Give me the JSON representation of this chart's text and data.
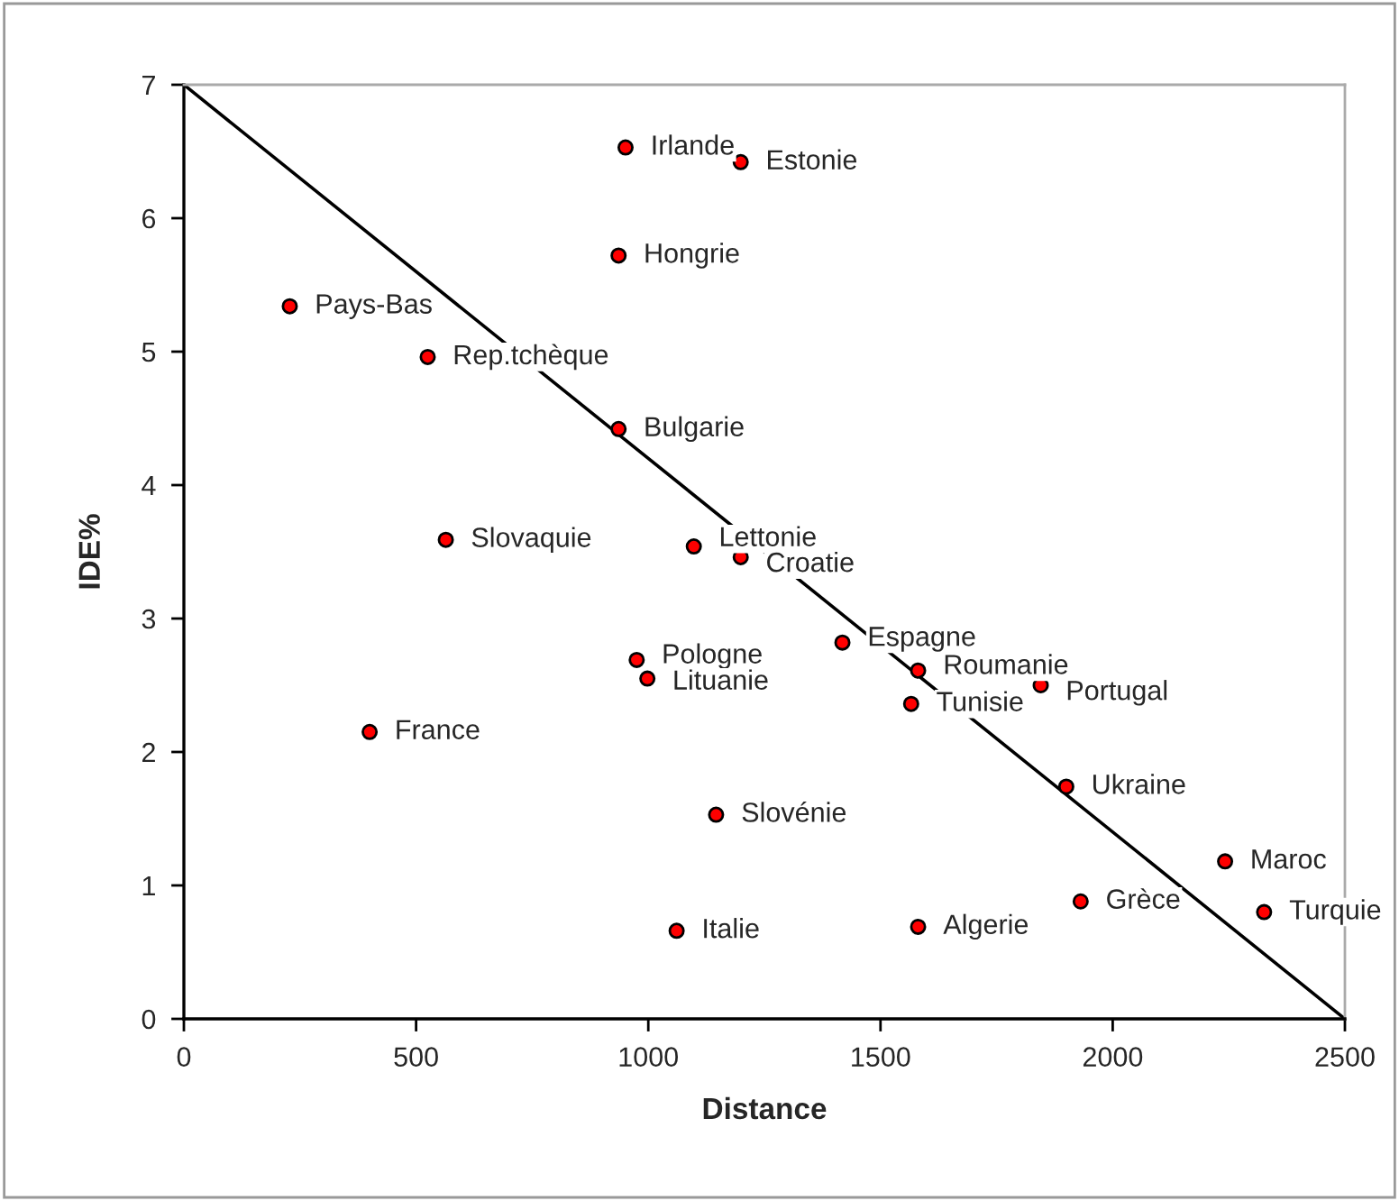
{
  "chart_data": {
    "type": "scatter",
    "xlabel": "Distance",
    "ylabel": "IDE%",
    "xlim": [
      0,
      2500
    ],
    "ylim": [
      0,
      7
    ],
    "xticks": [
      0,
      500,
      1000,
      1500,
      2000,
      2500
    ],
    "yticks": [
      0,
      1,
      2,
      3,
      4,
      5,
      6,
      7
    ],
    "grid": false,
    "legend": false,
    "marker": "circle",
    "series": [
      {
        "color": "#ff0000",
        "x": [
          951,
          1199,
          936,
          228,
          525,
          936,
          564,
          1098,
          1199,
          975,
          998,
          400,
          1146,
          1061,
          1418,
          1581,
          1845,
          1566,
          1900,
          2242,
          1931,
          2326,
          1581
        ],
        "values": [
          6.53,
          6.42,
          5.72,
          5.34,
          4.96,
          4.42,
          3.59,
          3.54,
          3.46,
          2.69,
          2.55,
          2.15,
          1.53,
          0.66,
          2.82,
          2.61,
          2.5,
          2.36,
          1.74,
          1.18,
          0.88,
          0.8,
          0.69
        ]
      },
      {
        "type": "line",
        "color": "#000000",
        "x": [
          0,
          2500
        ],
        "values": [
          7,
          0
        ],
        "line_style": "solid",
        "marker": "none"
      }
    ],
    "annotations": [
      {
        "text": "Irlande",
        "x": 951,
        "y": 6.53
      },
      {
        "text": "Estonie",
        "x": 1199,
        "y": 6.42
      },
      {
        "text": "Hongrie",
        "x": 936,
        "y": 5.72
      },
      {
        "text": "Pays-Bas",
        "x": 228,
        "y": 5.34
      },
      {
        "text": "Rep.tchèque",
        "x": 525,
        "y": 4.96
      },
      {
        "text": "Bulgarie",
        "x": 936,
        "y": 4.42
      },
      {
        "text": "Slovaquie",
        "x": 564,
        "y": 3.59
      },
      {
        "text": "Lettonie",
        "x": 1098,
        "y": 3.54
      },
      {
        "text": "Croatie",
        "x": 1199,
        "y": 3.46
      },
      {
        "text": "Pologne",
        "x": 975,
        "y": 2.69
      },
      {
        "text": "Lituanie",
        "x": 998,
        "y": 2.55
      },
      {
        "text": "France",
        "x": 400,
        "y": 2.15
      },
      {
        "text": "Slovénie",
        "x": 1146,
        "y": 1.53
      },
      {
        "text": "Italie",
        "x": 1061,
        "y": 0.66
      },
      {
        "text": "Espagne",
        "x": 1418,
        "y": 2.82
      },
      {
        "text": "Roumanie",
        "x": 1581,
        "y": 2.61
      },
      {
        "text": "Portugal",
        "x": 1845,
        "y": 2.5
      },
      {
        "text": "Tunisie",
        "x": 1566,
        "y": 2.36
      },
      {
        "text": "Ukraine",
        "x": 1900,
        "y": 1.74
      },
      {
        "text": "Maroc",
        "x": 2242,
        "y": 1.18
      },
      {
        "text": "Grèce",
        "x": 1931,
        "y": 0.88
      },
      {
        "text": "Turquie",
        "x": 2326,
        "y": 0.8
      },
      {
        "text": "Algerie",
        "x": 1581,
        "y": 0.69
      }
    ]
  }
}
